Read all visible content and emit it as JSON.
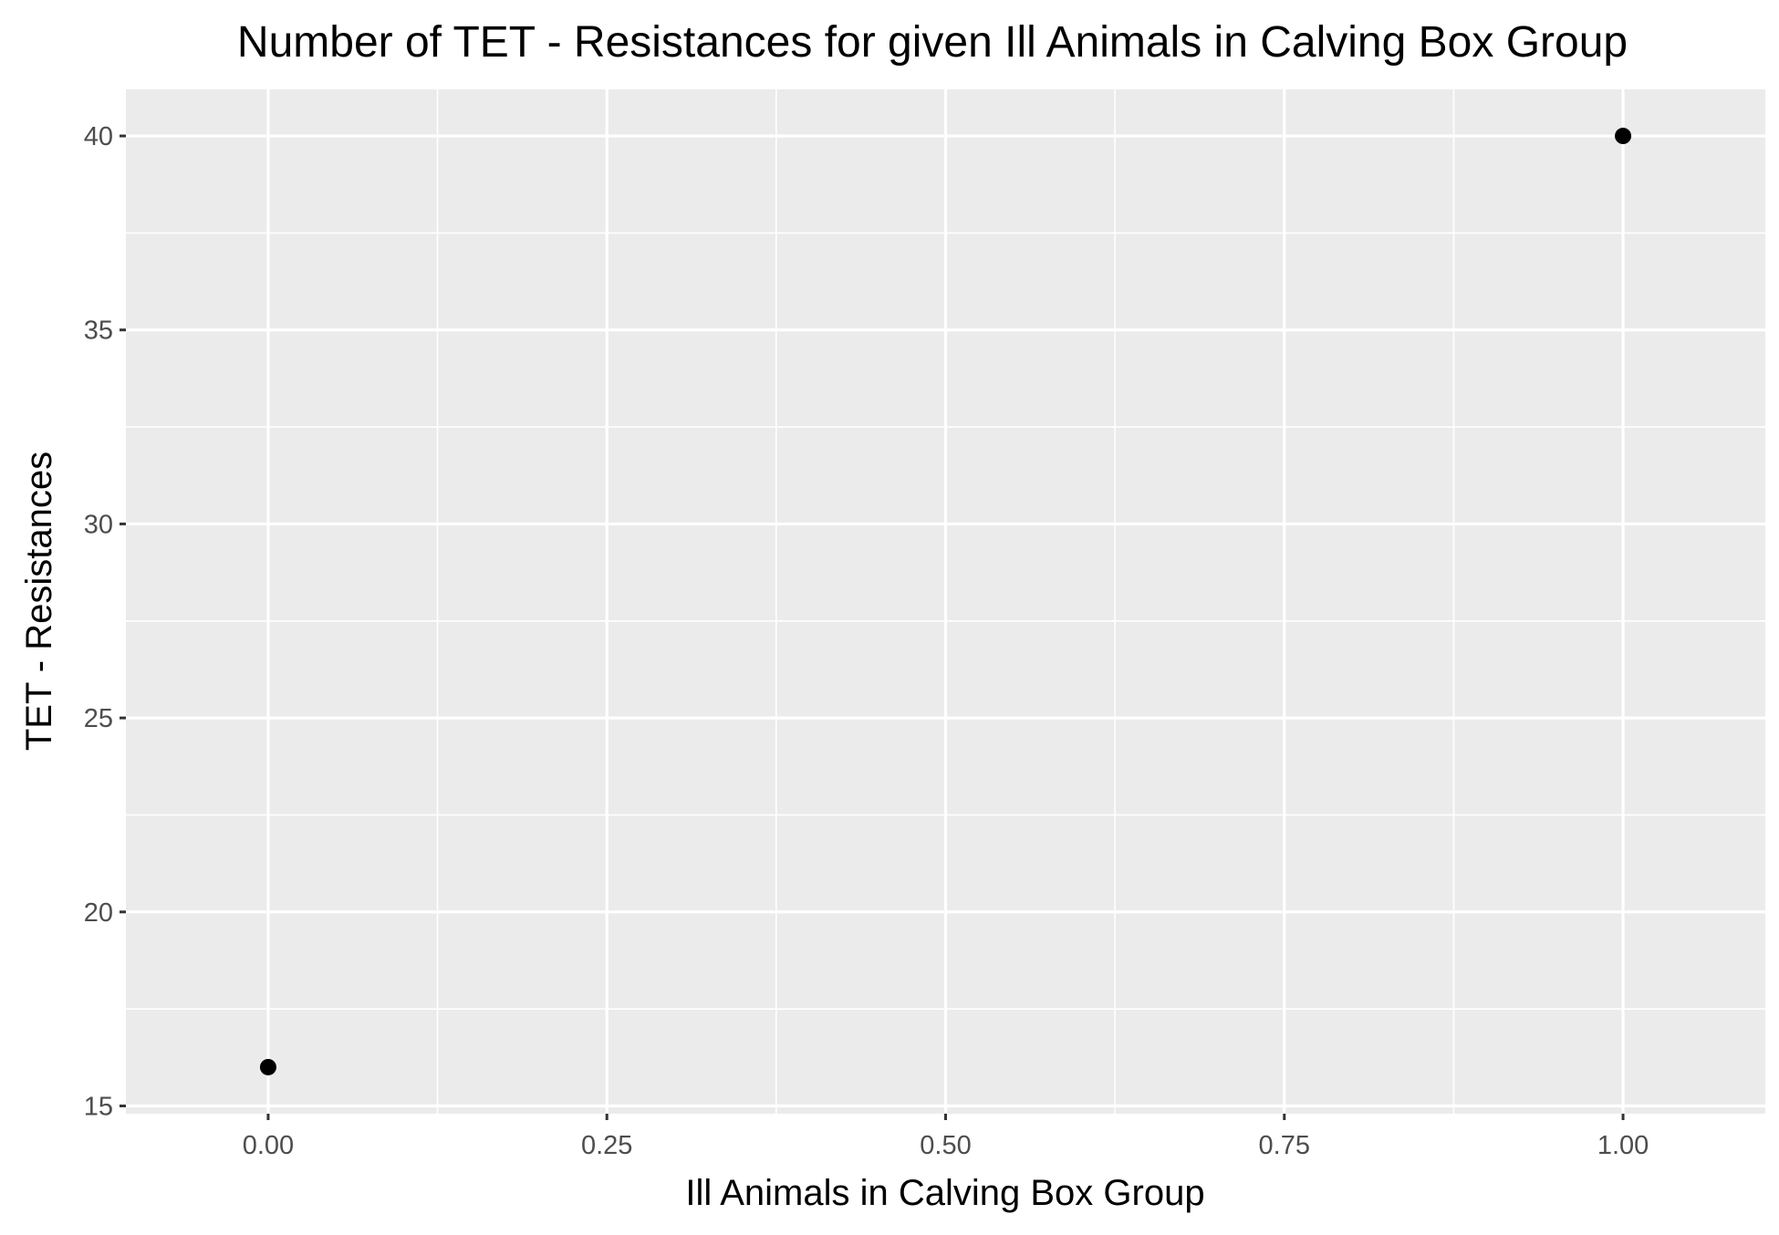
{
  "chart_data": {
    "type": "scatter",
    "title": "Number of TET - Resistances for given Ill Animals in Calving Box Group",
    "xlabel": "Ill Animals in Calving Box Group",
    "ylabel": "TET - Resistances",
    "xlim": [
      -0.105,
      1.105
    ],
    "ylim": [
      14.8,
      41.2
    ],
    "x_ticks": [
      0,
      0.25,
      0.5,
      0.75,
      1
    ],
    "x_tick_labels": [
      "0.00",
      "0.25",
      "0.50",
      "0.75",
      "1.00"
    ],
    "y_ticks": [
      15,
      20,
      25,
      30,
      35,
      40
    ],
    "y_tick_labels": [
      "15",
      "20",
      "25",
      "30",
      "35",
      "40"
    ],
    "grid": true,
    "legend": "none",
    "series": [
      {
        "points": [
          {
            "x": 0,
            "y": 16
          },
          {
            "x": 1,
            "y": 40
          }
        ]
      }
    ],
    "colors": {
      "panel_background": "#ebebeb",
      "grid_major": "#ffffff",
      "grid_minor": "#ffffff",
      "point": "#000000",
      "tick_text": "#4d4d4d",
      "tick_mark": "#333333"
    }
  }
}
